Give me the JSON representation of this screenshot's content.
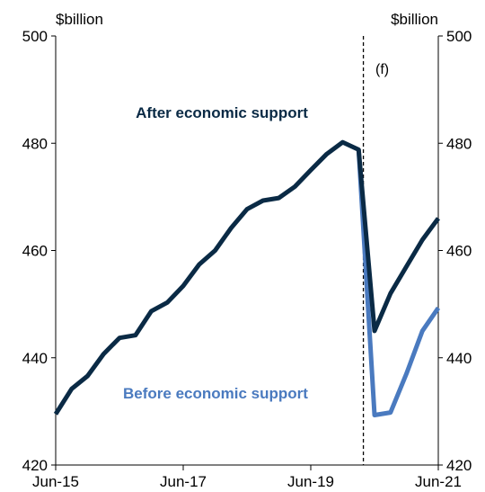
{
  "chart_data": {
    "type": "line",
    "ylabel_left": "$billion",
    "ylabel_right": "$billion",
    "forecast_label": "(f)",
    "ylim": [
      420,
      500
    ],
    "yticks": [
      420,
      440,
      460,
      480,
      500
    ],
    "xticks": [
      {
        "label": "Jun-15",
        "q": 0
      },
      {
        "label": "Jun-17",
        "q": 8
      },
      {
        "label": "Jun-19",
        "q": 16
      },
      {
        "label": "Jun-21",
        "q": 24
      }
    ],
    "forecast_start_q": 19.3,
    "x_range_q": [
      0,
      24
    ],
    "series": [
      {
        "name": "After economic support",
        "color": "#0a2a45",
        "x": [
          0,
          1,
          2,
          3,
          4,
          5,
          6,
          7,
          8,
          9,
          10,
          11,
          12,
          13,
          14,
          15,
          16,
          17,
          18,
          19,
          20,
          21,
          22,
          23,
          24
        ],
        "values": [
          429.5,
          434.2,
          436.6,
          440.7,
          443.7,
          444.2,
          448.7,
          450.3,
          453.4,
          457.4,
          460.0,
          464.2,
          467.7,
          469.3,
          469.8,
          471.9,
          475.0,
          478.0,
          480.2,
          478.8,
          445.0,
          452.0,
          457.0,
          462.0,
          466.0
        ]
      },
      {
        "name": "Before economic support",
        "color": "#4a7abf",
        "x": [
          19,
          20,
          21,
          22,
          23,
          24
        ],
        "values": [
          478.8,
          429.3,
          429.8,
          437.0,
          445.0,
          449.3
        ]
      }
    ]
  }
}
